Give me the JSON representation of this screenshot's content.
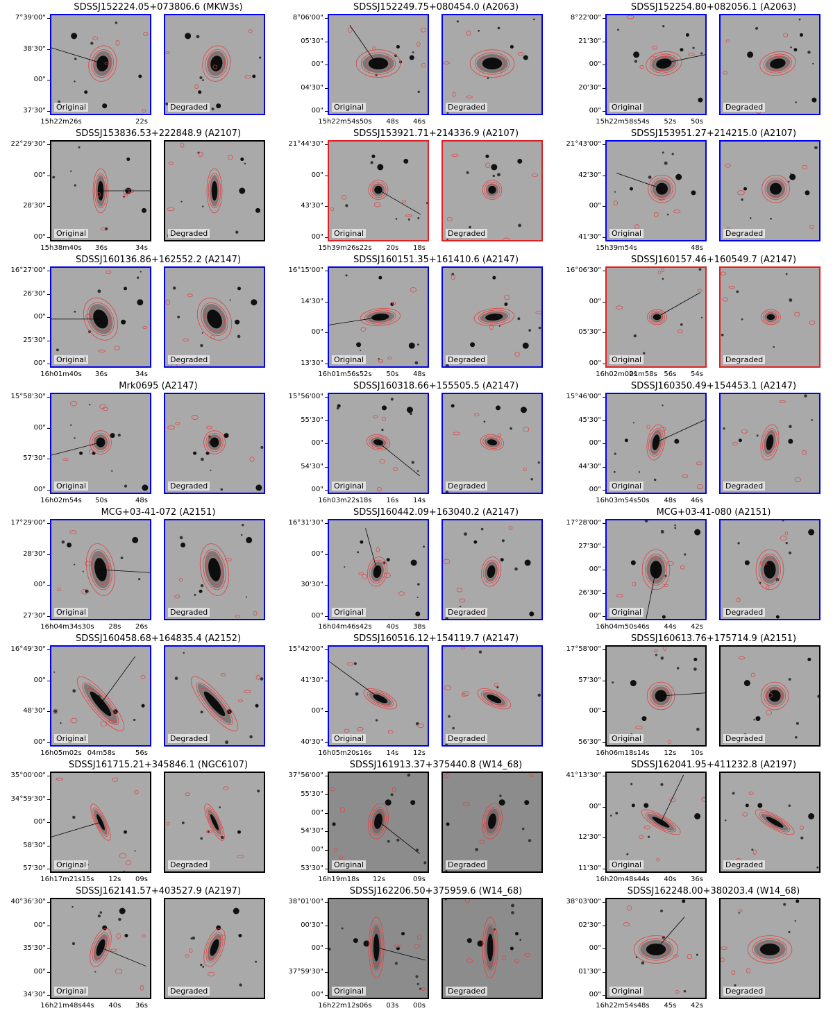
{
  "labels": {
    "original": "Original",
    "degraded": "Degraded"
  },
  "colors": {
    "blue": "#0000ee",
    "red": "#e02020",
    "black": "#000000",
    "contour": "#e04040"
  },
  "panels": [
    {
      "title": "SDSSJ152224.05+073806.6 (MKW3s)",
      "border": "blue",
      "yticks": [
        "7°39'00\"",
        "38'30\"",
        "00\"",
        "37'30\""
      ],
      "xticks": [
        "15h22m26s",
        "22s"
      ],
      "gal": {
        "cx": 0.52,
        "cy": 0.49,
        "rx": 0.06,
        "ry": 0.08,
        "rot": 10
      },
      "line": [
        0.0,
        0.33,
        0.52,
        0.49
      ],
      "stars": [
        [
          0.35,
          0.78
        ],
        [
          0.54,
          0.92
        ],
        [
          0.23,
          0.21
        ],
        [
          0.9,
          0.62
        ]
      ]
    },
    {
      "title": "SDSSJ152249.75+080454.0 (A2063)",
      "border": "blue",
      "yticks": [
        "8°06'00\"",
        "05'30\"",
        "00\"",
        "04'30\"",
        "00\""
      ],
      "xticks": [
        "15h22m54s",
        "50s",
        "48s",
        "46s"
      ],
      "gal": {
        "cx": 0.5,
        "cy": 0.49,
        "rx": 0.1,
        "ry": 0.06,
        "rot": 0
      },
      "line": [
        0.21,
        0.1,
        0.48,
        0.49
      ],
      "stars": [
        [
          0.7,
          0.32
        ],
        [
          0.84,
          0.43
        ]
      ]
    },
    {
      "title": "SDSSJ152254.80+082056.1 (A2063)",
      "border": "blue",
      "yticks": [
        "8°22'00\"",
        "21'30\"",
        "00\"",
        "20'30\"",
        "00\""
      ],
      "xticks": [
        "15h22m58s",
        "54s",
        "52s",
        "50s"
      ],
      "gal": {
        "cx": 0.58,
        "cy": 0.49,
        "rx": 0.08,
        "ry": 0.05,
        "rot": -10
      },
      "line": [
        1.0,
        0.4,
        0.52,
        0.5
      ],
      "stars": [
        [
          0.76,
          0.35
        ],
        [
          0.95,
          0.86
        ],
        [
          0.3,
          0.4
        ],
        [
          0.82,
          0.2
        ]
      ]
    },
    {
      "title": "SDSSJ153836.53+222848.9 (A2107)",
      "border": "black",
      "yticks": [
        "22°29'30\"",
        "00\"",
        "28'30\"",
        "00\""
      ],
      "xticks": [
        "15h38m40s",
        "36s",
        "34s"
      ],
      "gal": {
        "cx": 0.5,
        "cy": 0.5,
        "rx": 0.03,
        "ry": 0.1,
        "rot": 0
      },
      "line": [
        1.0,
        0.5,
        0.5,
        0.5
      ],
      "stars": [
        [
          0.78,
          0.18
        ],
        [
          0.94,
          0.7
        ],
        [
          0.78,
          0.5
        ]
      ]
    },
    {
      "title": "SDSSJ153921.71+214336.9 (A2107)",
      "border": "red",
      "yticks": [
        "21°44'30\"",
        "00\"",
        "43'30\"",
        "00\""
      ],
      "xticks": [
        "15h39m26s",
        "22s",
        "20s",
        "18s"
      ],
      "gal": {
        "cx": 0.5,
        "cy": 0.49,
        "rx": 0.04,
        "ry": 0.04,
        "rot": 0
      },
      "line": [
        0.93,
        0.74,
        0.5,
        0.49
      ],
      "stars": [
        [
          0.45,
          0.15
        ],
        [
          0.78,
          0.2
        ],
        [
          0.52,
          0.26
        ]
      ]
    },
    {
      "title": "SDSSJ153951.27+214215.0 (A2107)",
      "border": "blue",
      "yticks": [
        "21°43'00\"",
        "42'30\"",
        "00\"",
        "41'30\""
      ],
      "xticks": [
        "15h39m54s",
        "48s"
      ],
      "gal": {
        "cx": 0.56,
        "cy": 0.48,
        "rx": 0.06,
        "ry": 0.06,
        "rot": 0
      },
      "line": [
        0.1,
        0.32,
        0.56,
        0.48
      ],
      "stars": [
        [
          0.25,
          0.48
        ],
        [
          0.88,
          0.52
        ],
        [
          0.73,
          0.36
        ]
      ]
    },
    {
      "title": "SDSSJ160136.86+162552.2 (A2147)",
      "border": "blue",
      "yticks": [
        "16°27'00\"",
        "26'30\"",
        "00\"",
        "25'30\"",
        "00\""
      ],
      "xticks": [
        "16h01m40s",
        "36s",
        "34s"
      ],
      "gal": {
        "cx": 0.5,
        "cy": 0.52,
        "rx": 0.07,
        "ry": 0.1,
        "rot": -25
      },
      "line": [
        0.0,
        0.52,
        0.5,
        0.52
      ],
      "stars": [
        [
          0.75,
          0.21
        ],
        [
          0.73,
          0.55
        ],
        [
          0.9,
          0.35
        ]
      ]
    },
    {
      "title": "SDSSJ160151.35+161410.6 (A2147)",
      "border": "blue",
      "yticks": [
        "16°15'00\"",
        "14'30\"",
        "00\"",
        "13'30\""
      ],
      "xticks": [
        "16h01m56s",
        "52s",
        "50s",
        "48s"
      ],
      "gal": {
        "cx": 0.52,
        "cy": 0.5,
        "rx": 0.09,
        "ry": 0.035,
        "rot": -5
      },
      "line": [
        0.0,
        0.58,
        0.52,
        0.5
      ],
      "stars": [
        [
          0.52,
          0.1
        ],
        [
          0.3,
          0.78
        ],
        [
          0.84,
          0.79
        ],
        [
          0.64,
          0.37
        ]
      ]
    },
    {
      "title": "SDSSJ160157.46+160549.7 (A2147)",
      "border": "red",
      "yticks": [
        "16°06'30\"",
        "00\"",
        "05'30\"",
        "00\""
      ],
      "xticks": [
        "16h02m02s",
        "01m58s",
        "56s",
        "54s"
      ],
      "gal": {
        "cx": 0.51,
        "cy": 0.5,
        "rx": 0.04,
        "ry": 0.03,
        "rot": 0
      },
      "line": [
        0.95,
        0.25,
        0.51,
        0.5
      ],
      "stars": []
    },
    {
      "title": "Mrk0695 (A2147)",
      "border": "blue",
      "yticks": [
        "15°58'30\"",
        "00\"",
        "57'30\"",
        "00\""
      ],
      "xticks": [
        "16h02m54s",
        "50s",
        "48s"
      ],
      "gal": {
        "cx": 0.5,
        "cy": 0.49,
        "rx": 0.045,
        "ry": 0.05,
        "rot": 0
      },
      "line": [
        0.0,
        0.62,
        0.5,
        0.49
      ],
      "stars": [
        [
          0.3,
          0.6
        ],
        [
          0.62,
          0.42
        ],
        [
          0.95,
          0.95
        ],
        [
          0.43,
          0.6
        ]
      ]
    },
    {
      "title": "SDSSJ160318.66+155505.5 (A2147)",
      "border": "blue",
      "yticks": [
        "15°56'00\"",
        "55'30\"",
        "00\"",
        "54'30\"",
        "00\""
      ],
      "xticks": [
        "16h03m22s",
        "18s",
        "16s",
        "14s"
      ],
      "gal": {
        "cx": 0.5,
        "cy": 0.49,
        "rx": 0.05,
        "ry": 0.03,
        "rot": 10
      },
      "line": [
        0.92,
        0.83,
        0.5,
        0.49
      ],
      "stars": [
        [
          0.1,
          0.12
        ],
        [
          0.56,
          0.14
        ],
        [
          0.82,
          0.16
        ]
      ]
    },
    {
      "title": "SDSSJ160350.49+154453.1 (A2147)",
      "border": "blue",
      "yticks": [
        "15°46'00\"",
        "45'30\"",
        "00\"",
        "44'30\"",
        "00\""
      ],
      "xticks": [
        "16h03m54s",
        "50s",
        "48s",
        "46s"
      ],
      "gal": {
        "cx": 0.5,
        "cy": 0.49,
        "rx": 0.035,
        "ry": 0.08,
        "rot": 10
      },
      "line": [
        1.0,
        0.26,
        0.5,
        0.49
      ],
      "stars": [
        [
          0.2,
          0.47
        ],
        [
          0.71,
          0.48
        ]
      ]
    },
    {
      "title": "MCG+03-41-072 (A2151)",
      "border": "blue",
      "yticks": [
        "17°29'00\"",
        "28'30\"",
        "00\"",
        "27'30\""
      ],
      "xticks": [
        "16h04m34s",
        "30s",
        "28s",
        "26s"
      ],
      "gal": {
        "cx": 0.5,
        "cy": 0.5,
        "rx": 0.06,
        "ry": 0.12,
        "rot": -10
      },
      "line": [
        1.0,
        0.53,
        0.5,
        0.5
      ],
      "stars": [
        [
          0.36,
          0.72
        ],
        [
          0.18,
          0.25
        ],
        [
          0.85,
          0.2
        ]
      ]
    },
    {
      "title": "SDSSJ160442.09+163040.2 (A2147)",
      "border": "blue",
      "yticks": [
        "16°31'30\"",
        "00\"",
        "30'30\"",
        "00\""
      ],
      "xticks": [
        "16h04m46s",
        "42s",
        "40s",
        "38s"
      ],
      "gal": {
        "cx": 0.49,
        "cy": 0.52,
        "rx": 0.04,
        "ry": 0.065,
        "rot": 10
      },
      "line": [
        0.37,
        0.08,
        0.49,
        0.52
      ],
      "stars": [
        [
          0.33,
          0.22
        ],
        [
          0.9,
          0.95
        ],
        [
          0.86,
          0.43
        ],
        [
          0.6,
          0.4
        ]
      ]
    },
    {
      "title": "MCG+03-41-080 (A2151)",
      "border": "blue",
      "yticks": [
        "17°28'00\"",
        "27'30\"",
        "00\"",
        "26'30\"",
        "00\""
      ],
      "xticks": [
        "16h04m50s",
        "46s",
        "44s",
        "42s"
      ],
      "gal": {
        "cx": 0.5,
        "cy": 0.5,
        "rx": 0.06,
        "ry": 0.09,
        "rot": 0
      },
      "line": [
        0.4,
        1.0,
        0.5,
        0.5
      ],
      "stars": [
        [
          0.58,
          0.98
        ],
        [
          0.27,
          0.43
        ],
        [
          0.92,
          0.12
        ]
      ]
    },
    {
      "title": "SDSSJ160458.68+164835.4 (A2152)",
      "border": "blue",
      "yticks": [
        "16°49'30\"",
        "00\"",
        "48'30\"",
        "00\""
      ],
      "xticks": [
        "16h05m02s",
        "04m58s",
        "56s"
      ],
      "gal": {
        "cx": 0.5,
        "cy": 0.58,
        "rx": 0.04,
        "ry": 0.16,
        "rot": -40
      },
      "line": [
        0.85,
        0.1,
        0.5,
        0.58
      ],
      "stars": [
        [
          0.93,
          0.6
        ],
        [
          0.65,
          0.66
        ]
      ]
    },
    {
      "title": "SDSSJ160516.12+154119.7 (A2147)",
      "border": "blue",
      "yticks": [
        "15°42'00\"",
        "41'30\"",
        "00\"",
        "40'30\""
      ],
      "xticks": [
        "16h05m20s",
        "16s",
        "14s",
        "12s"
      ],
      "gal": {
        "cx": 0.52,
        "cy": 0.53,
        "rx": 0.08,
        "ry": 0.03,
        "rot": 25
      },
      "line": [
        0.0,
        0.15,
        0.52,
        0.53
      ],
      "stars": []
    },
    {
      "title": "SDSSJ160613.76+175714.9 (A2151)",
      "border": "black",
      "yticks": [
        "17°58'00\"",
        "57'30\"",
        "00\"",
        "56'30\""
      ],
      "xticks": [
        "16h06m18s",
        "14s",
        "12s",
        "10s"
      ],
      "gal": {
        "cx": 0.55,
        "cy": 0.5,
        "rx": 0.06,
        "ry": 0.06,
        "rot": 0
      },
      "line": [
        1.0,
        0.47,
        0.55,
        0.5
      ],
      "stars": [
        [
          0.25,
          0.9
        ],
        [
          0.38,
          0.73
        ],
        [
          0.27,
          0.37
        ],
        [
          0.9,
          0.13
        ]
      ]
    },
    {
      "title": "SDSSJ161715.21+345846.1 (NGC6107)",
      "border": "black",
      "yticks": [
        "35°00'00\"",
        "34°59'30\"",
        "00\"",
        "58'30\"",
        "57'30\""
      ],
      "xticks": [
        "16h17m21s",
        "15s",
        "12s",
        "09s"
      ],
      "gal": {
        "cx": 0.5,
        "cy": 0.5,
        "rx": 0.02,
        "ry": 0.09,
        "rot": -25
      },
      "line": [
        0.0,
        0.65,
        0.5,
        0.5
      ],
      "stars": [
        [
          0.75,
          0.6
        ]
      ]
    },
    {
      "title": "SDSSJ161913.37+375440.8 (W14_68)",
      "border": "black",
      "yticks": [
        "37°56'00\"",
        "55'30\"",
        "00\"",
        "54'30\"",
        "00\"",
        "53'30\""
      ],
      "xticks": [
        "16h19m18s",
        "12s",
        "09s"
      ],
      "gal": {
        "cx": 0.5,
        "cy": 0.49,
        "rx": 0.04,
        "ry": 0.08,
        "rot": 10
      },
      "line": [
        0.92,
        0.82,
        0.5,
        0.49
      ],
      "stars": [
        [
          0.05,
          0.52
        ],
        [
          0.85,
          0.3
        ],
        [
          0.6,
          0.3
        ]
      ]
    },
    {
      "title": "SDSSJ162041.95+411232.8 (A2197)",
      "border": "black",
      "yticks": [
        "41°13'30\"",
        "00\"",
        "12'30\"",
        "11'30\""
      ],
      "xticks": [
        "16h20m48s",
        "44s",
        "40s",
        "36s"
      ],
      "gal": {
        "cx": 0.55,
        "cy": 0.5,
        "rx": 0.1,
        "ry": 0.025,
        "rot": 30
      },
      "line": [
        0.78,
        0.02,
        0.55,
        0.5
      ],
      "stars": [
        [
          0.27,
          0.33
        ],
        [
          0.4,
          0.33
        ],
        [
          0.92,
          0.44
        ]
      ]
    },
    {
      "title": "SDSSJ162141.57+403527.9 (A2197)",
      "border": "black",
      "yticks": [
        "40°36'30\"",
        "00\"",
        "35'30\"",
        "00\"",
        "34'30\""
      ],
      "xticks": [
        "16h21m48s",
        "44s",
        "40s",
        "36s"
      ],
      "gal": {
        "cx": 0.5,
        "cy": 0.49,
        "rx": 0.035,
        "ry": 0.09,
        "rot": 20
      },
      "line": [
        0.96,
        0.68,
        0.5,
        0.49
      ],
      "stars": [
        [
          0.76,
          0.37
        ],
        [
          0.54,
          0.29
        ],
        [
          0.72,
          0.12
        ]
      ]
    },
    {
      "title": "SDSSJ162206.50+375959.6 (W14_68)",
      "border": "black",
      "yticks": [
        "38°01'00\"",
        "00'30\"",
        "00\"",
        "37°59'30\"",
        "00\""
      ],
      "xticks": [
        "16h22m12s",
        "06s",
        "03s",
        "00s"
      ],
      "gal": {
        "cx": 0.48,
        "cy": 0.49,
        "rx": 0.03,
        "ry": 0.14,
        "rot": 0
      },
      "line": [
        0.98,
        0.62,
        0.48,
        0.49
      ],
      "stars": [
        [
          0.75,
          0.35
        ],
        [
          0.27,
          0.42
        ],
        [
          0.38,
          0.45
        ],
        [
          0.7,
          0.5
        ]
      ]
    },
    {
      "title": "SDSSJ162248.00+380203.4 (W14_68)",
      "border": "black",
      "yticks": [
        "38°03'00\"",
        "02'30\"",
        "00\"",
        "01'30\"",
        "00\""
      ],
      "xticks": [
        "16h22m54s",
        "48s",
        "45s",
        "42s"
      ],
      "gal": {
        "cx": 0.5,
        "cy": 0.51,
        "rx": 0.1,
        "ry": 0.06,
        "rot": 0
      },
      "line": [
        0.79,
        0.18,
        0.5,
        0.51
      ],
      "stars": [
        [
          0.78,
          0.02
        ]
      ]
    }
  ]
}
